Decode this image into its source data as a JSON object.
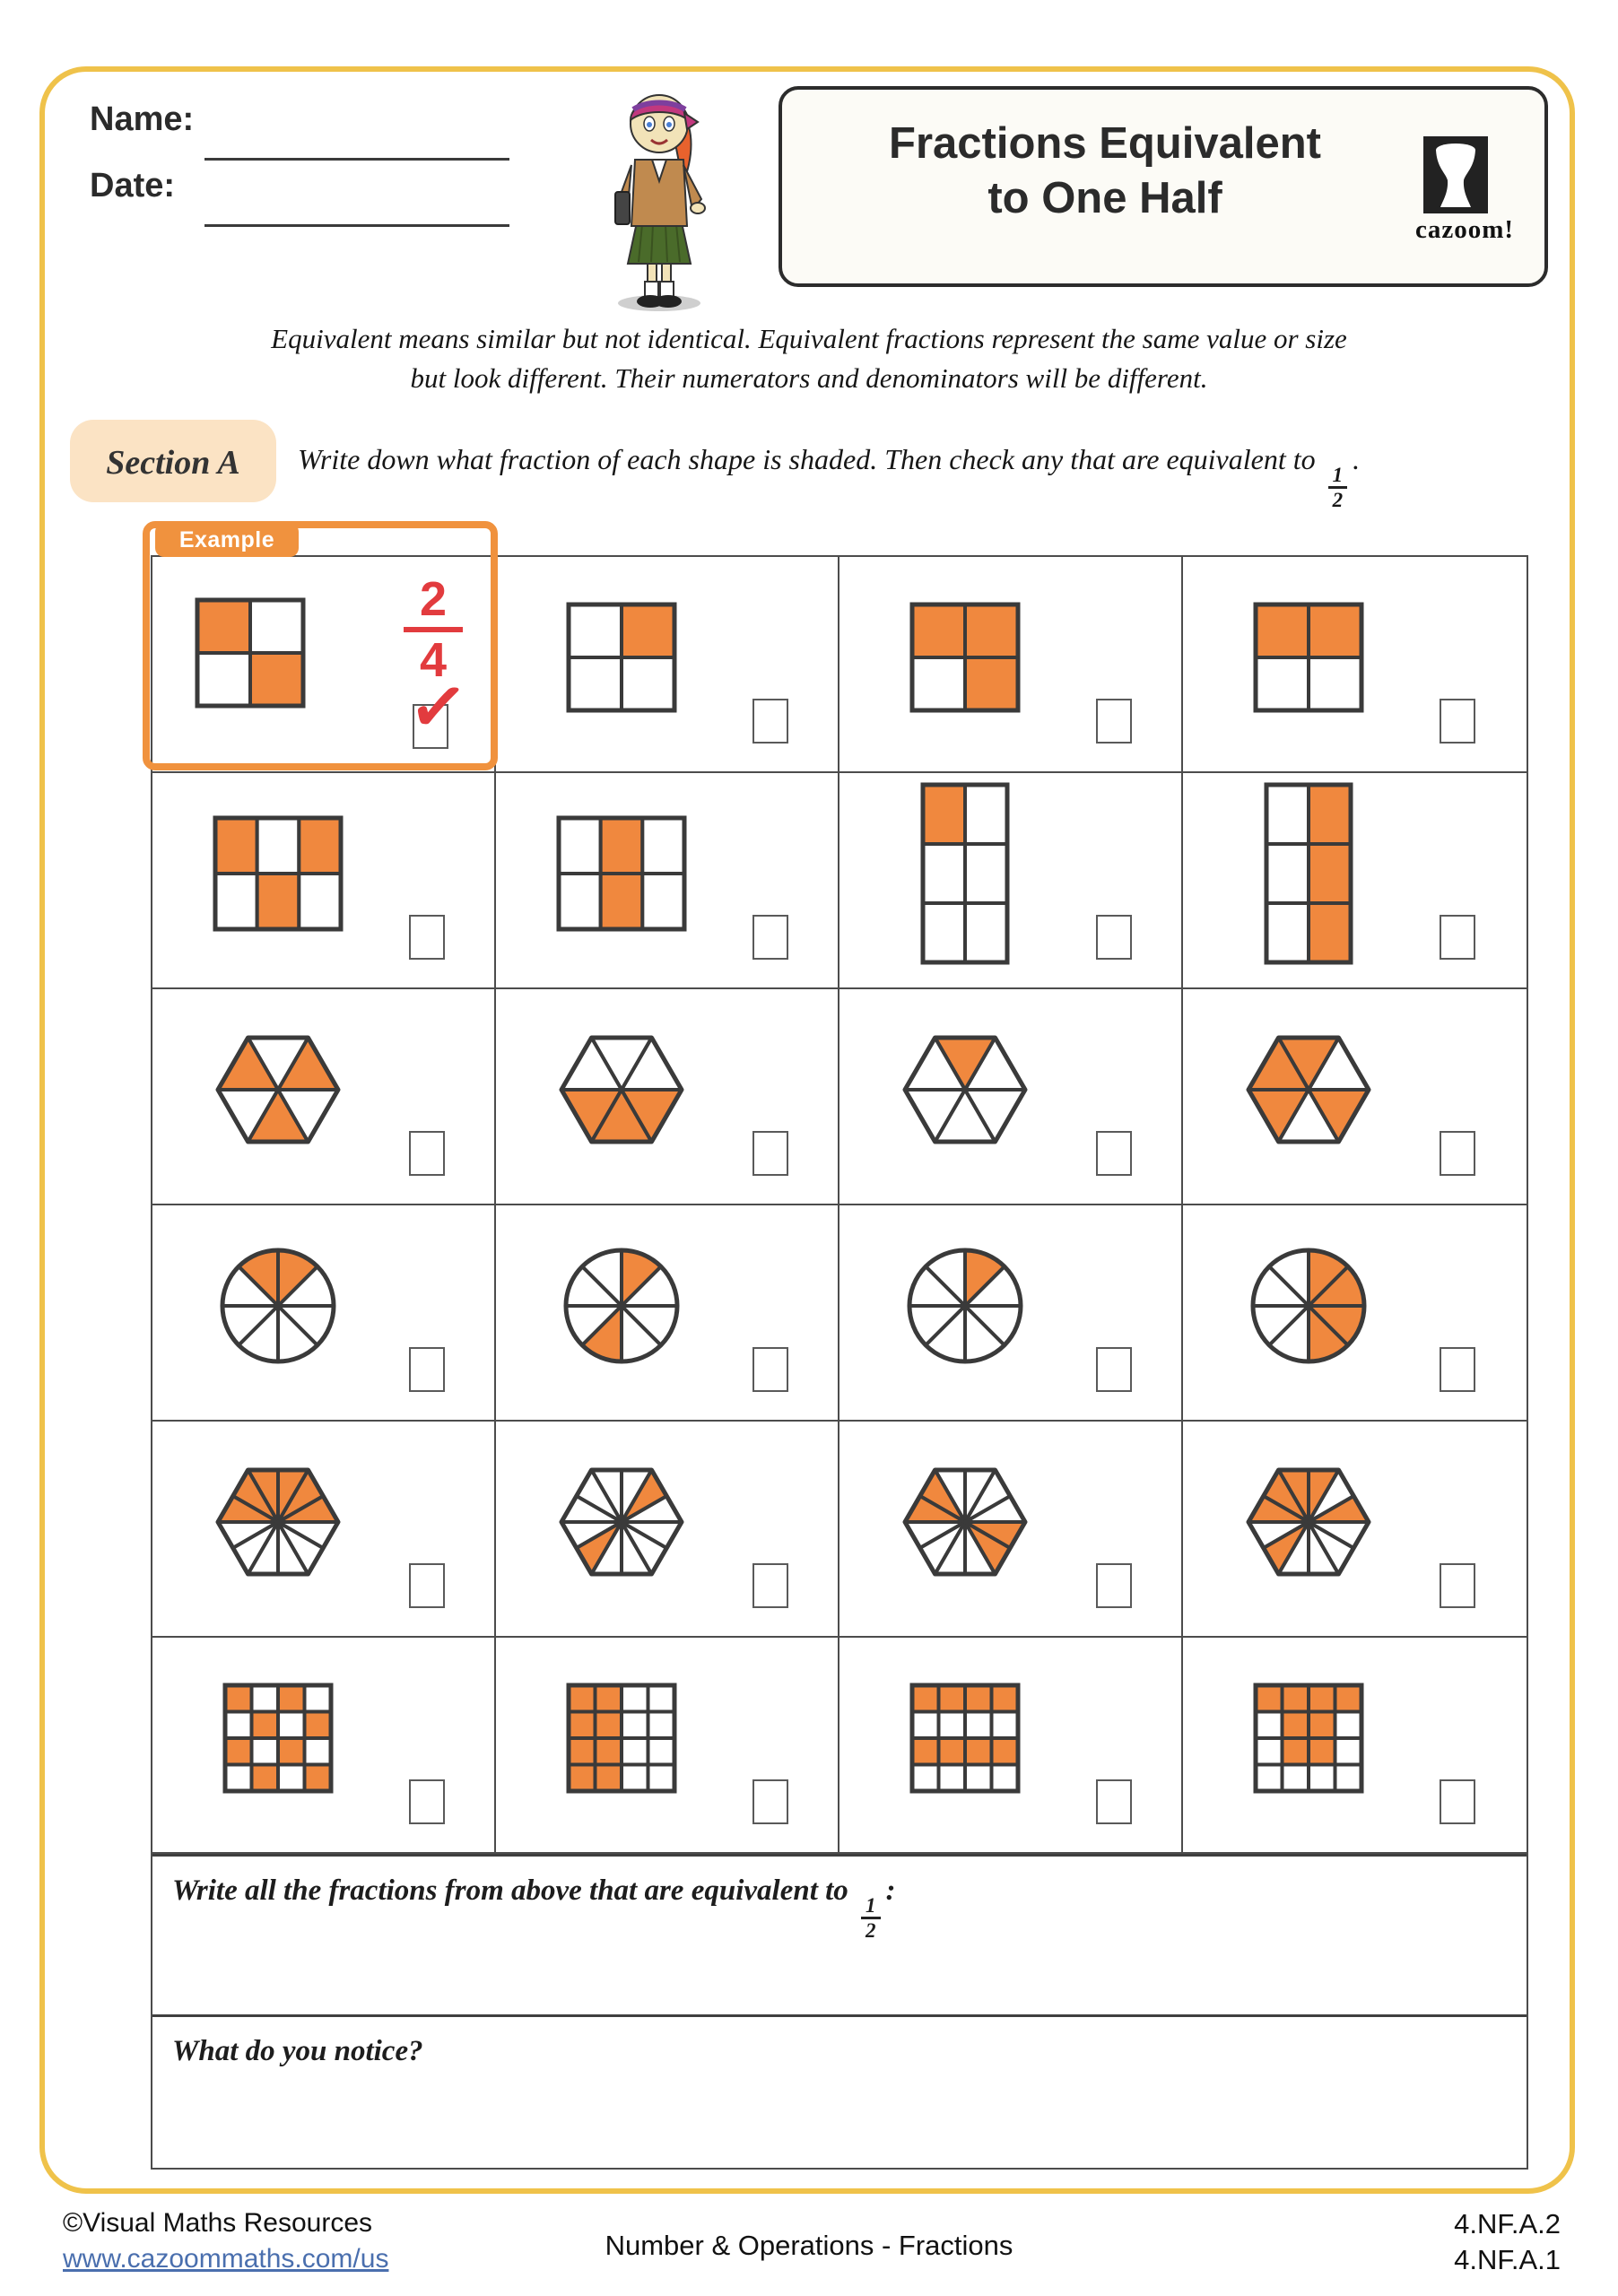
{
  "colors": {
    "orange": "#F0883E",
    "orange_border": "#F0923E",
    "outline": "#3A3A3A",
    "red": "#E23B3E",
    "gold": "#EFC24A",
    "peach": "#FBE3C4",
    "link_blue": "#4a6fae"
  },
  "header": {
    "name_label": "Name:",
    "date_label": "Date:",
    "title_line1": "Fractions Equivalent",
    "title_line2": "to One Half",
    "logo_text": "cazoom!"
  },
  "intro": {
    "line1": "Equivalent means similar but not identical. Equivalent fractions represent the same value or size",
    "line2": "but look different. Their numerators and denominators will be different."
  },
  "section_a": {
    "label": "Section A",
    "instruction": "Write down what fraction of each shape is shaded. Then check any that are equivalent to",
    "frac_num": "1",
    "frac_den": "2",
    "suffix": "."
  },
  "example": {
    "label": "Example",
    "answer_num": "2",
    "answer_den": "4"
  },
  "grid": {
    "rows": [
      [
        {
          "shape": "grid",
          "cols": 2,
          "rows": 2,
          "parts": 4,
          "shaded": [
            0,
            3
          ],
          "shaded_count": 2,
          "example": true,
          "checkbox": "checked"
        },
        {
          "shape": "grid",
          "cols": 2,
          "rows": 2,
          "parts": 4,
          "shaded": [
            1
          ],
          "shaded_count": 1,
          "checkbox": "unchecked"
        },
        {
          "shape": "grid",
          "cols": 2,
          "rows": 2,
          "parts": 4,
          "shaded": [
            0,
            1,
            3
          ],
          "shaded_count": 3,
          "checkbox": "unchecked"
        },
        {
          "shape": "grid",
          "cols": 2,
          "rows": 2,
          "parts": 4,
          "shaded": [
            0,
            1
          ],
          "shaded_count": 2,
          "checkbox": "unchecked"
        }
      ],
      [
        {
          "shape": "grid",
          "cols": 3,
          "rows": 2,
          "parts": 6,
          "shaded": [
            0,
            2,
            4
          ],
          "shaded_count": 3,
          "checkbox": "unchecked"
        },
        {
          "shape": "grid",
          "cols": 3,
          "rows": 2,
          "parts": 6,
          "shaded": [
            1,
            4
          ],
          "shaded_count": 2,
          "checkbox": "unchecked"
        },
        {
          "shape": "grid",
          "cols": 2,
          "rows": 3,
          "parts": 6,
          "shaded": [
            0
          ],
          "shaded_count": 1,
          "checkbox": "unchecked"
        },
        {
          "shape": "grid",
          "cols": 2,
          "rows": 3,
          "parts": 6,
          "shaded": [
            1,
            3,
            5
          ],
          "shaded_count": 3,
          "checkbox": "unchecked"
        }
      ],
      [
        {
          "shape": "hex6",
          "parts": 6,
          "shaded": [
            0,
            2,
            4
          ],
          "shaded_count": 3,
          "checkbox": "unchecked"
        },
        {
          "shape": "hex6",
          "parts": 6,
          "shaded": [
            3,
            4,
            5
          ],
          "shaded_count": 3,
          "checkbox": "unchecked"
        },
        {
          "shape": "hex6",
          "parts": 6,
          "shaded": [
            1
          ],
          "shaded_count": 1,
          "checkbox": "unchecked"
        },
        {
          "shape": "hex6",
          "parts": 6,
          "shaded": [
            1,
            2,
            3,
            5
          ],
          "shaded_count": 4,
          "checkbox": "unchecked"
        }
      ],
      [
        {
          "shape": "circle8",
          "parts": 8,
          "shaded": [
            1,
            2
          ],
          "shaded_count": 2,
          "checkbox": "unchecked"
        },
        {
          "shape": "circle8",
          "parts": 8,
          "shaded": [
            1,
            5
          ],
          "shaded_count": 2,
          "checkbox": "unchecked"
        },
        {
          "shape": "circle8",
          "parts": 8,
          "shaded": [
            1
          ],
          "shaded_count": 1,
          "checkbox": "unchecked"
        },
        {
          "shape": "circle8",
          "parts": 8,
          "shaded": [
            0,
            1,
            6,
            7
          ],
          "shaded_count": 4,
          "checkbox": "unchecked"
        }
      ],
      [
        {
          "shape": "hex12",
          "parts": 12,
          "shaded": [
            0,
            1,
            2,
            3,
            4,
            5
          ],
          "shaded_count": 6,
          "checkbox": "unchecked"
        },
        {
          "shape": "hex12",
          "parts": 12,
          "shaded": [
            1,
            7
          ],
          "shaded_count": 2,
          "checkbox": "unchecked"
        },
        {
          "shape": "hex12",
          "parts": 12,
          "shaded": [
            4,
            5,
            10,
            11
          ],
          "shaded_count": 4,
          "checkbox": "unchecked"
        },
        {
          "shape": "hex12",
          "parts": 12,
          "shaded": [
            0,
            2,
            3,
            4,
            5,
            7
          ],
          "shaded_count": 6,
          "checkbox": "unchecked"
        }
      ],
      [
        {
          "shape": "grid",
          "cols": 4,
          "rows": 4,
          "parts": 16,
          "shaded": [
            0,
            2,
            5,
            7,
            8,
            10,
            13,
            15
          ],
          "shaded_count": 8,
          "checkbox": "unchecked"
        },
        {
          "shape": "grid",
          "cols": 4,
          "rows": 4,
          "parts": 16,
          "shaded": [
            0,
            1,
            4,
            5,
            8,
            9,
            12,
            13
          ],
          "shaded_count": 8,
          "checkbox": "unchecked"
        },
        {
          "shape": "grid",
          "cols": 4,
          "rows": 4,
          "parts": 16,
          "shaded": [
            0,
            1,
            2,
            3,
            8,
            9,
            10,
            11
          ],
          "shaded_count": 8,
          "checkbox": "unchecked"
        },
        {
          "shape": "grid",
          "cols": 4,
          "rows": 4,
          "parts": 16,
          "shaded": [
            0,
            1,
            2,
            3,
            5,
            6,
            9,
            10
          ],
          "shaded_count": 8,
          "checkbox": "unchecked"
        }
      ]
    ]
  },
  "bottom": {
    "q1_text": "Write all the fractions from above that are equivalent to",
    "q1_frac_num": "1",
    "q1_frac_den": "2",
    "q1_suffix": ":",
    "q2_text": "What do you notice?"
  },
  "footer": {
    "copyright": "©Visual Maths Resources",
    "url": "www.cazoommaths.com/us",
    "center": "Number & Operations - Fractions",
    "standard1": "4.NF.A.2",
    "standard2": "4.NF.A.1"
  }
}
